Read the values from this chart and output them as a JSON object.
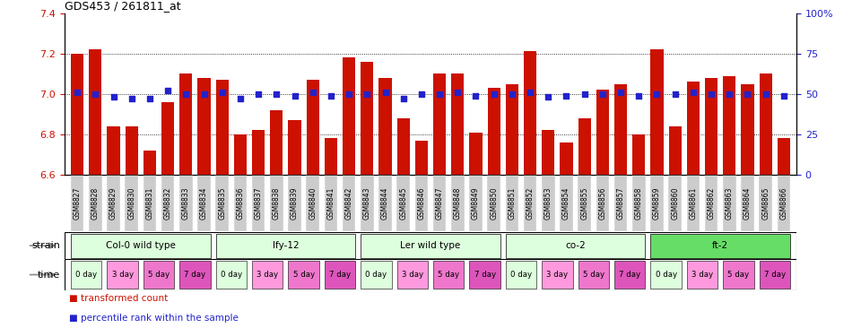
{
  "title": "GDS453 / 261811_at",
  "ylim": [
    6.6,
    7.4
  ],
  "yticks": [
    6.6,
    6.8,
    7.0,
    7.2,
    7.4
  ],
  "right_yticks": [
    0,
    25,
    50,
    75,
    100
  ],
  "right_ytick_labels": [
    "0",
    "25",
    "50",
    "75",
    "100%"
  ],
  "bar_color": "#CC1100",
  "dot_color": "#2222CC",
  "samples": [
    "GSM8827",
    "GSM8828",
    "GSM8829",
    "GSM8830",
    "GSM8831",
    "GSM8832",
    "GSM8833",
    "GSM8834",
    "GSM8835",
    "GSM8836",
    "GSM8837",
    "GSM8838",
    "GSM8839",
    "GSM8840",
    "GSM8841",
    "GSM8842",
    "GSM8843",
    "GSM8844",
    "GSM8845",
    "GSM8846",
    "GSM8847",
    "GSM8848",
    "GSM8849",
    "GSM8850",
    "GSM8851",
    "GSM8852",
    "GSM8853",
    "GSM8854",
    "GSM8855",
    "GSM8856",
    "GSM8857",
    "GSM8858",
    "GSM8859",
    "GSM8860",
    "GSM8861",
    "GSM8862",
    "GSM8863",
    "GSM8864",
    "GSM8865",
    "GSM8866"
  ],
  "bar_values": [
    7.2,
    7.22,
    6.84,
    6.84,
    6.72,
    6.96,
    7.1,
    7.08,
    7.07,
    6.8,
    6.82,
    6.92,
    6.87,
    7.07,
    6.78,
    7.18,
    7.16,
    7.08,
    6.88,
    6.77,
    7.1,
    7.1,
    6.81,
    7.03,
    7.05,
    7.21,
    6.82,
    6.76,
    6.88,
    7.02,
    7.05,
    6.8,
    7.22,
    6.84,
    7.06,
    7.08,
    7.09,
    7.05,
    7.1,
    6.78
  ],
  "dot_values": [
    7.01,
    7.0,
    6.985,
    6.975,
    6.975,
    7.015,
    7.0,
    7.0,
    7.01,
    6.975,
    7.0,
    7.0,
    6.99,
    7.01,
    6.99,
    7.0,
    7.0,
    7.01,
    6.975,
    7.0,
    7.0,
    7.01,
    6.99,
    7.0,
    7.0,
    7.01,
    6.985,
    6.99,
    7.0,
    7.0,
    7.01,
    6.99,
    7.0,
    7.0,
    7.01,
    7.0,
    7.0,
    7.0,
    7.0,
    6.99
  ],
  "strains": [
    {
      "label": "Col-0 wild type",
      "start": 0,
      "end": 8,
      "color": "#DDFFDD"
    },
    {
      "label": "lfy-12",
      "start": 8,
      "end": 16,
      "color": "#DDFFDD"
    },
    {
      "label": "Ler wild type",
      "start": 16,
      "end": 24,
      "color": "#DDFFDD"
    },
    {
      "label": "co-2",
      "start": 24,
      "end": 32,
      "color": "#DDFFDD"
    },
    {
      "label": "ft-2",
      "start": 32,
      "end": 40,
      "color": "#66DD66"
    }
  ],
  "time_labels": [
    "0 day",
    "3 day",
    "5 day",
    "7 day"
  ],
  "time_colors": [
    "#DDFFDD",
    "#FF99DD",
    "#EE77CC",
    "#DD55BB"
  ],
  "xtick_bg": "#DDDDDD",
  "background_color": "#FFFFFF",
  "tick_label_color_left": "#CC1100",
  "tick_label_color_right": "#2222CC"
}
